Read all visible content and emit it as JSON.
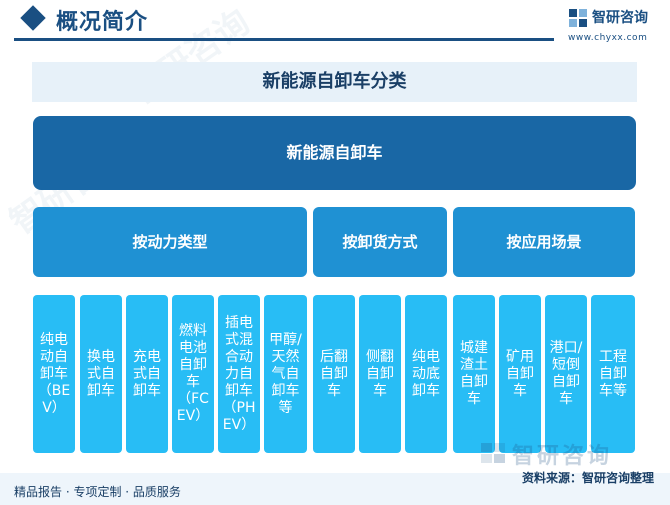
{
  "header": {
    "title": "概况简介"
  },
  "logo": {
    "name": "智研咨询",
    "url": "www.chyxx.com"
  },
  "diagram": {
    "title": "新能源自卸车分类",
    "root": "新能源自卸车",
    "categories": [
      {
        "label": "按动力类型",
        "items": [
          "纯电动自卸车（BEV）",
          "换电式自卸车",
          "充电式自卸车",
          "燃料电池自卸车（FCEV）",
          "插电式混合动力自卸车（PHEV）",
          "甲醇/天然气自卸车等"
        ]
      },
      {
        "label": "按卸货方式",
        "items": [
          "后翻自卸车",
          "侧翻自卸车",
          "纯电动底卸车"
        ]
      },
      {
        "label": "按应用场景",
        "items": [
          "城建渣土自卸车",
          "矿用自卸车",
          "港口/短倒自卸车",
          "工程自卸车等"
        ]
      }
    ]
  },
  "watermark": {
    "brand": "智研咨询"
  },
  "footer": {
    "left": "精品报告 · 专项定制 · 品质服务",
    "source": "资料来源：智研咨询整理"
  },
  "colors": {
    "primary": "#1a4f82",
    "root": "#1967a5",
    "category": "#1f91d3",
    "leaf": "#28bdf5"
  }
}
